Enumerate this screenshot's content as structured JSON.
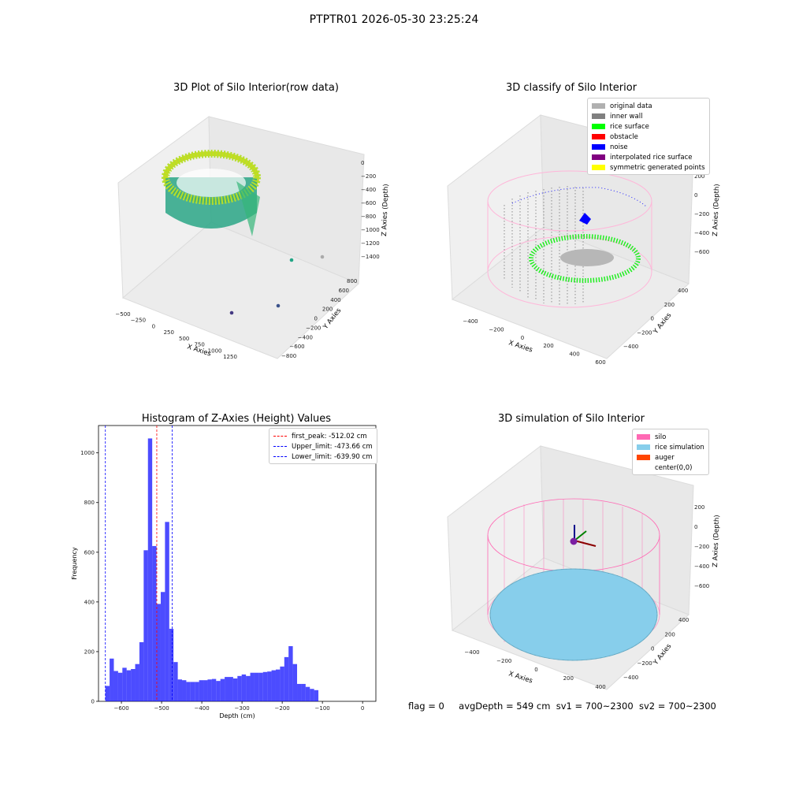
{
  "suptitle": "PTPTR01 2026-05-30 23:25:24",
  "panel1": {
    "title": "3D Plot of Silo Interior(row data)",
    "xlabel": "X Axies",
    "ylabel": "Y Axies",
    "zlabel": "Z Axies (Depth)",
    "xticks": [
      "−500",
      "−250",
      "0",
      "250",
      "500",
      "750",
      "1000",
      "1250"
    ],
    "yticks": [
      "−800",
      "−600",
      "−400",
      "−200",
      "0",
      "200",
      "400",
      "600",
      "800"
    ],
    "zticks": [
      "0",
      "−200",
      "−400",
      "−600",
      "−800",
      "−1000",
      "−1200",
      "−1400"
    ]
  },
  "panel2": {
    "title": "3D classify of Silo Interior",
    "xlabel": "X Axies",
    "ylabel": "Y Axies",
    "zlabel": "Z Axies (Depth)",
    "xticks": [
      "−400",
      "−200",
      "0",
      "200",
      "400",
      "600"
    ],
    "yticks": [
      "−400",
      "−200",
      "0",
      "200",
      "400"
    ],
    "zticks": [
      "200",
      "0",
      "−200",
      "−400",
      "−600"
    ],
    "legend": [
      {
        "label": "original data",
        "color": "#b0b0b0"
      },
      {
        "label": "inner wall",
        "color": "#808080"
      },
      {
        "label": "rice surface",
        "color": "#00ff00"
      },
      {
        "label": "obstacle",
        "color": "#ff0000"
      },
      {
        "label": "noise",
        "color": "#0000ff"
      },
      {
        "label": "interpolated rice surface",
        "color": "#800080"
      },
      {
        "label": "symmetric generated points",
        "color": "#ffff00"
      }
    ]
  },
  "panel4": {
    "title": "3D simulation of Silo Interior",
    "xlabel": "X Axies",
    "ylabel": "Y Axies",
    "zlabel": "Z Axies (Depth)",
    "xticks": [
      "−400",
      "−200",
      "0",
      "200",
      "400"
    ],
    "yticks": [
      "−400",
      "−200",
      "0",
      "200",
      "400"
    ],
    "zticks": [
      "200",
      "0",
      "−200",
      "−400",
      "−600"
    ],
    "legend": [
      {
        "label": "silo",
        "color": "#ff69b4"
      },
      {
        "label": "rice simulation",
        "color": "#87ceeb"
      },
      {
        "label": "auger",
        "color": "#ff4500"
      },
      {
        "label": "center(0,0)",
        "color": ""
      }
    ]
  },
  "chart_data": {
    "type": "bar",
    "title": "Histogram of Z-Axies (Height) Values",
    "xlabel": "Depth (cm)",
    "ylabel": "Frequency",
    "xlim": [
      -657,
      33
    ],
    "ylim": [
      0,
      1110
    ],
    "xticks": [
      "−600",
      "−500",
      "−400",
      "−300",
      "−200",
      "−100",
      "0"
    ],
    "yticks": [
      "0",
      "200",
      "400",
      "600",
      "800",
      "1000"
    ],
    "bar_color": "#0000ff",
    "bin_width": 10.6,
    "bin_left": -640,
    "values": [
      62,
      172,
      122,
      115,
      135,
      125,
      130,
      150,
      238,
      608,
      1058,
      625,
      392,
      440,
      722,
      292,
      158,
      88,
      85,
      78,
      78,
      78,
      85,
      85,
      88,
      90,
      82,
      90,
      98,
      98,
      92,
      102,
      108,
      102,
      115,
      115,
      115,
      118,
      120,
      125,
      128,
      140,
      178,
      222,
      150,
      70,
      70,
      58,
      50,
      45
    ],
    "vlines": [
      {
        "label": "first_peak: -512.02 cm",
        "x": -512.02,
        "color": "#ff0000"
      },
      {
        "label": "Upper_limit: -473.66 cm",
        "x": -473.66,
        "color": "#0000ff"
      },
      {
        "label": "Lower_limit: -639.90 cm",
        "x": -639.9,
        "color": "#0000ff"
      }
    ],
    "legend_position": "upper-right"
  },
  "status": {
    "flag": "flag = 0",
    "avg": "avgDepth = 549 cm",
    "sv1": "sv1 = 700~2300",
    "sv2": "sv2 = 700~2300"
  }
}
